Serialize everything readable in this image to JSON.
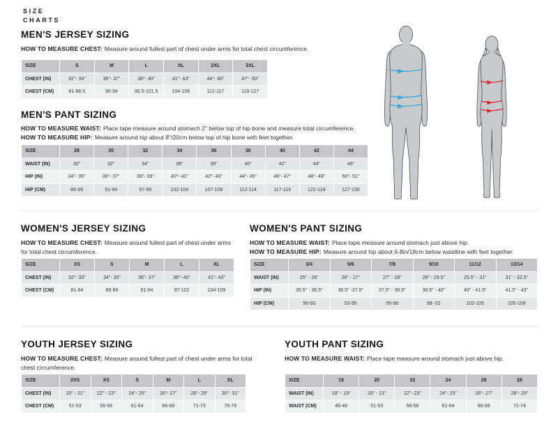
{
  "brand": {
    "line1": "SIZE",
    "line2": "CHARTS"
  },
  "colors": {
    "accent_blue": "#36a3d9",
    "accent_red": "#d8242f",
    "table_header_bg": "#c6c6c8",
    "row_dark": "#e5e6e7",
    "row_light": "#f0f1f1",
    "silhouette_gray": "#c9cacc"
  },
  "figures": {
    "male": "male-body-silhouette-with-blue-measurement-arrows",
    "female": "female-body-silhouette-with-red-measurement-arrows"
  },
  "sections": {
    "mens_jersey": {
      "title": "MEN'S JERSEY SIZING",
      "m1_label": "HOW TO MEASURE CHEST:",
      "m1_text": "Measure around fullest part of chest under arms for total chest circumference.",
      "table": {
        "col_headers": [
          "SIZE",
          "S",
          "M",
          "L",
          "XL",
          "2XL",
          "3XL"
        ],
        "rows": [
          {
            "label": "CHEST (IN)",
            "values": [
              "32\"- 34\"",
              "35\"- 37\"",
              "38\"- 40\"",
              "41\"- 43\"",
              "44\"- 46\"",
              "47\"- 50\""
            ]
          },
          {
            "label": "CHEST (CM)",
            "values": [
              "81-86.5",
              "90-94",
              "96.5-101.5",
              "104-109",
              "112-117",
              "119-127"
            ]
          }
        ]
      }
    },
    "mens_pant": {
      "title": "MEN'S PANT SIZING",
      "m1_label": "HOW TO MEASURE WAIST:",
      "m1_text": "Place tape measure around stomach 2\" below top of hip bone and measure total circumference.",
      "m2_label": "HOW TO MEASURE HIP:",
      "m2_text": "Measure around hip about 8\"/20cm below top of hip bone with feet together.",
      "table": {
        "col_headers": [
          "SIZE",
          "28",
          "30",
          "32",
          "34",
          "36",
          "38",
          "40",
          "42",
          "44"
        ],
        "rows": [
          {
            "label": "WAIST (IN)",
            "values": [
              "30\"",
              "32\"",
              "34\"",
              "36\"",
              "38\"",
              "40\"",
              "42\"",
              "44\"",
              "46\""
            ]
          },
          {
            "label": "HIP (IN)",
            "values": [
              "34\"- 35\"",
              "36\"- 37\"",
              "38\"- 39\"",
              "40\"- 41\"",
              "42\"- 43\"",
              "44\"- 45\"",
              "46\"- 47\"",
              "48\"- 49\"",
              "50\"- 51\""
            ]
          },
          {
            "label": "HIP (CM)",
            "values": [
              "86-89",
              "91-94",
              "97-99",
              "102-104",
              "107-109",
              "112-114",
              "117-119",
              "122-124",
              "127-130"
            ]
          }
        ]
      }
    },
    "womens_jersey": {
      "title": "WOMEN'S JERSEY SIZING",
      "m1_label": "HOW TO MEASURE CHEST:",
      "m1_text": "Measure around fullest part of chest under arms for total chest circumference.",
      "table": {
        "col_headers": [
          "SIZE",
          "XS",
          "S",
          "M",
          "L",
          "XL"
        ],
        "rows": [
          {
            "label": "CHEST (IN)",
            "values": [
              "32\"- 33\"",
              "34\"- 35\"",
              "36\"- 37\"",
              "38\"- 40\"",
              "41\"- 43\""
            ]
          },
          {
            "label": "CHEST (CM)",
            "values": [
              "81-84",
              "86-89",
              "91-94",
              "97-102",
              "104-109"
            ]
          }
        ]
      }
    },
    "womens_pant": {
      "title": "WOMEN'S PANT SIZING",
      "m1_label": "HOW TO MEASURE WAIST:",
      "m1_text": "Place tape measure around stomach just above hip.",
      "m2_label": "HOW TO MEASURE HIP:",
      "m2_text": "Measure around hip about 6-8in/18cm below waistline with feet together.",
      "table": {
        "col_headers": [
          "SIZE",
          "3/4",
          "5/6",
          "7/8",
          "9/10",
          "11/12",
          "13/14"
        ],
        "rows": [
          {
            "label": "WAIST (IN)",
            "values": [
              "25\" - 26\"",
              "26\" - 27\"",
              "27\" - 28\"",
              "28\" - 29.5\"",
              "29.5\" - 31\"",
              "31\" - 32.5\""
            ]
          },
          {
            "label": "HIP (IN)",
            "values": [
              "35.5\" - 36.5\"",
              "36.5\" -37.5\"",
              "37.5\" - 38.5\"",
              "38.5\" - 40\"",
              "40\" - 41.5\"",
              "41.5\" - 43\""
            ]
          },
          {
            "label": "HIP (CM)",
            "values": [
              "90-93",
              "93-95",
              "95-98",
              "98- 02",
              "102-105",
              "105-109"
            ]
          }
        ]
      }
    },
    "youth_jersey": {
      "title": "YOUTH JERSEY SIZING",
      "m1_label": "HOW TO MEASURE CHEST:",
      "m1_text": "Measure around fullest part of chest under arms for total chest circumference.",
      "table": {
        "col_headers": [
          "SIZE",
          "2XS",
          "XS",
          "S",
          "M",
          "L",
          "XL"
        ],
        "rows": [
          {
            "label": "CHEST (IN)",
            "values": [
              "20\" - 21\"",
              "22\" - 23\"",
              "24\"- 25\"",
              "26\"- 27\"",
              "28\"- 29\"",
              "30\"- 31\""
            ]
          },
          {
            "label": "CHEST (CM)",
            "values": [
              "51-53",
              "56-58",
              "61-64",
              "66-69",
              "71-73",
              "76-79"
            ]
          }
        ]
      }
    },
    "youth_pant": {
      "title": "YOUTH PANT SIZING",
      "m1_label": "HOW TO MEASURE WAIST:",
      "m1_text": "Place tape measure around stomach just above hip.",
      "table": {
        "col_headers": [
          "SIZE",
          "18",
          "20",
          "22",
          "24",
          "26",
          "28"
        ],
        "rows": [
          {
            "label": "WAIST (IN)",
            "values": [
              "18\" - 19\"",
              "20\" - 21\"",
              "22\"- 23\"",
              "24\"- 25\"",
              "26\"- 27\"",
              "28\"- 29\""
            ]
          },
          {
            "label": "WAIST (CM)",
            "values": [
              "46-48",
              "51-53",
              "56-58",
              "61-64",
              "66-69",
              "71-74"
            ]
          }
        ]
      }
    }
  }
}
